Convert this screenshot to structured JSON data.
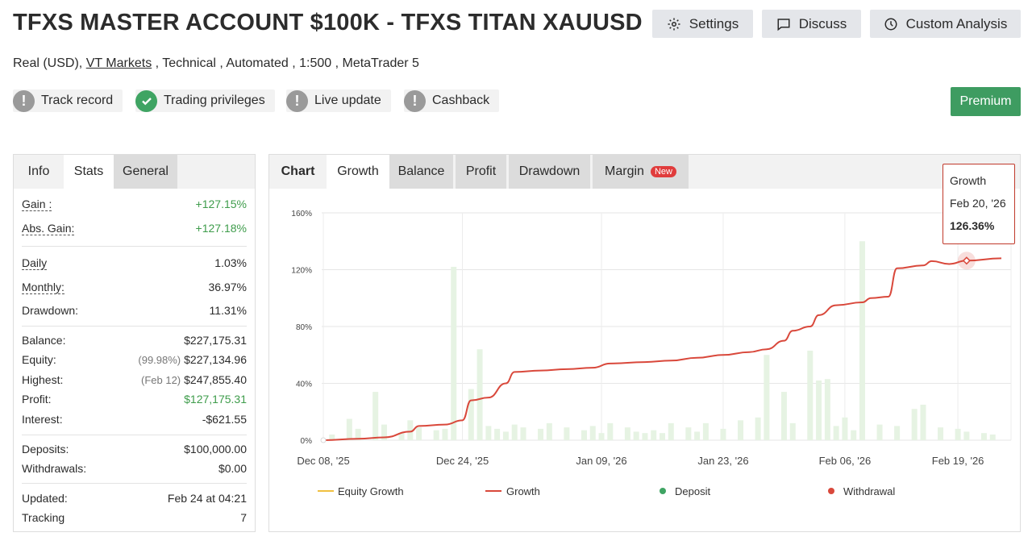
{
  "header": {
    "title": "TFXS MASTER ACCOUNT $100K - TFXS TITAN XAUUSD",
    "buttons": {
      "settings": "Settings",
      "discuss": "Discuss",
      "custom_analysis": "Custom Analysis"
    },
    "subtitle_pre": "Real (USD), ",
    "broker": "VT Markets",
    "subtitle_post": " , Technical , Automated , 1:500 , MetaTrader 5"
  },
  "badges": {
    "track_record": "Track record",
    "trading_privileges": "Trading privileges",
    "live_update": "Live update",
    "cashback": "Cashback"
  },
  "premium": "Premium",
  "left_tabs": {
    "info": "Info",
    "stats": "Stats",
    "general": "General"
  },
  "stats": {
    "gain": {
      "label": "Gain :",
      "value": "+127.15%"
    },
    "abs_gain": {
      "label": "Abs. Gain:",
      "value": "+127.18%"
    },
    "daily": {
      "label": "Daily",
      "value": "1.03%"
    },
    "monthly": {
      "label": "Monthly:",
      "value": "36.97%"
    },
    "drawdown": {
      "label": "Drawdown:",
      "value": "11.31%"
    },
    "balance": {
      "label": "Balance:",
      "value": "$227,175.31"
    },
    "equity": {
      "label": "Equity:",
      "pre": "(99.98%)",
      "value": "$227,134.96"
    },
    "highest": {
      "label": "Highest:",
      "pre": "(Feb 12)",
      "value": "$247,855.40"
    },
    "profit": {
      "label": "Profit:",
      "value": "$127,175.31"
    },
    "interest": {
      "label": "Interest:",
      "value": "-$621.55"
    },
    "deposits": {
      "label": "Deposits:",
      "value": "$100,000.00"
    },
    "withdrawals": {
      "label": "Withdrawals:",
      "value": "$0.00"
    },
    "updated": {
      "label": "Updated:",
      "value": "Feb 24 at 04:21"
    },
    "tracking": {
      "label": "Tracking",
      "value": "7"
    }
  },
  "chart_tabs": {
    "chart": "Chart",
    "growth": "Growth",
    "balance": "Balance",
    "profit": "Profit",
    "drawdown": "Drawdown",
    "margin": "Margin",
    "new_tag": "New"
  },
  "tooltip": {
    "series": "Growth",
    "date": "Feb 20, '26",
    "value": "126.36%"
  },
  "legend": {
    "equity_growth": "Equity Growth",
    "growth": "Growth",
    "deposit": "Deposit",
    "withdrawal": "Withdrawal"
  },
  "colors": {
    "growth_line": "#d9483b",
    "equity_line": "#f0c040",
    "deposit": "#3fa463",
    "withdrawal": "#d9483b",
    "bars": "#e6f3e3"
  },
  "chart_data": {
    "type": "line",
    "y_ticks": [
      "0%",
      "40%",
      "80%",
      "120%",
      "160%"
    ],
    "ylim": [
      0,
      160
    ],
    "x_ticks": [
      "Dec 08, '25",
      "Dec 24, '25",
      "Jan 09, '26",
      "Jan 23, '26",
      "Feb 06, '26",
      "Feb 19, '26"
    ],
    "x_range": [
      "2025-12-08",
      "2026-02-24"
    ],
    "grid": true,
    "series": [
      {
        "name": "Growth",
        "points": [
          [
            "2025-12-08",
            0
          ],
          [
            "2025-12-12",
            1
          ],
          [
            "2025-12-15",
            2
          ],
          [
            "2025-12-18",
            6
          ],
          [
            "2025-12-19",
            10
          ],
          [
            "2025-12-22",
            11
          ],
          [
            "2025-12-24",
            14
          ],
          [
            "2025-12-25",
            28
          ],
          [
            "2025-12-27",
            30
          ],
          [
            "2025-12-29",
            40
          ],
          [
            "2025-12-30",
            48
          ],
          [
            "2026-01-02",
            49
          ],
          [
            "2026-01-05",
            50
          ],
          [
            "2026-01-08",
            51
          ],
          [
            "2026-01-10",
            54
          ],
          [
            "2026-01-14",
            55
          ],
          [
            "2026-01-17",
            56
          ],
          [
            "2026-01-20",
            58
          ],
          [
            "2026-01-23",
            60
          ],
          [
            "2026-01-26",
            62
          ],
          [
            "2026-01-28",
            64
          ],
          [
            "2026-01-30",
            70
          ],
          [
            "2026-01-31",
            77
          ],
          [
            "2026-02-02",
            80
          ],
          [
            "2026-02-03",
            88
          ],
          [
            "2026-02-05",
            95
          ],
          [
            "2026-02-08",
            97
          ],
          [
            "2026-02-09",
            100
          ],
          [
            "2026-02-11",
            101
          ],
          [
            "2026-02-12",
            121
          ],
          [
            "2026-02-15",
            123
          ],
          [
            "2026-02-16",
            126
          ],
          [
            "2026-02-18",
            124
          ],
          [
            "2026-02-20",
            126.36
          ],
          [
            "2026-02-24",
            128
          ]
        ]
      }
    ],
    "bars": [
      [
        "2025-12-09",
        4
      ],
      [
        "2025-12-11",
        15
      ],
      [
        "2025-12-12",
        8
      ],
      [
        "2025-12-14",
        34
      ],
      [
        "2025-12-15",
        11
      ],
      [
        "2025-12-17",
        5
      ],
      [
        "2025-12-18",
        14
      ],
      [
        "2025-12-19",
        9
      ],
      [
        "2025-12-21",
        7
      ],
      [
        "2025-12-22",
        8
      ],
      [
        "2025-12-23",
        122
      ],
      [
        "2025-12-25",
        36
      ],
      [
        "2025-12-26",
        64
      ],
      [
        "2025-12-27",
        10
      ],
      [
        "2025-12-28",
        8
      ],
      [
        "2025-12-29",
        6
      ],
      [
        "2025-12-30",
        11
      ],
      [
        "2025-12-31",
        9
      ],
      [
        "2026-01-02",
        8
      ],
      [
        "2026-01-03",
        12
      ],
      [
        "2026-01-05",
        9
      ],
      [
        "2026-01-07",
        7
      ],
      [
        "2026-01-08",
        10
      ],
      [
        "2026-01-09",
        5
      ],
      [
        "2026-01-10",
        12
      ],
      [
        "2026-01-12",
        9
      ],
      [
        "2026-01-13",
        6
      ],
      [
        "2026-01-14",
        5
      ],
      [
        "2026-01-15",
        7
      ],
      [
        "2026-01-16",
        5
      ],
      [
        "2026-01-17",
        12
      ],
      [
        "2026-01-19",
        9
      ],
      [
        "2026-01-20",
        6
      ],
      [
        "2026-01-21",
        12
      ],
      [
        "2026-01-23",
        8
      ],
      [
        "2026-01-25",
        14
      ],
      [
        "2026-01-27",
        16
      ],
      [
        "2026-01-28",
        60
      ],
      [
        "2026-01-30",
        34
      ],
      [
        "2026-01-31",
        12
      ],
      [
        "2026-02-02",
        63
      ],
      [
        "2026-02-03",
        42
      ],
      [
        "2026-02-04",
        43
      ],
      [
        "2026-02-05",
        10
      ],
      [
        "2026-02-06",
        16
      ],
      [
        "2026-02-07",
        7
      ],
      [
        "2026-02-08",
        140
      ],
      [
        "2026-02-10",
        11
      ],
      [
        "2026-02-12",
        10
      ],
      [
        "2026-02-14",
        22
      ],
      [
        "2026-02-15",
        25
      ],
      [
        "2026-02-17",
        9
      ],
      [
        "2026-02-19",
        8
      ],
      [
        "2026-02-20",
        6
      ],
      [
        "2026-02-22",
        5
      ],
      [
        "2026-02-23",
        4
      ]
    ],
    "highlight": [
      "2026-02-20",
      126.36
    ]
  }
}
